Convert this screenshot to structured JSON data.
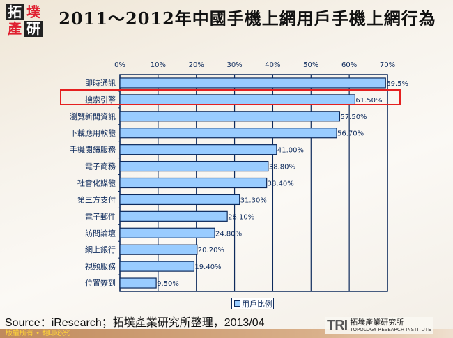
{
  "logo": {
    "chars": [
      "拓",
      "墣",
      "產",
      "研"
    ]
  },
  "title": "2011～2012年中國手機上網用戶手機上網行為",
  "chart_data": {
    "type": "bar",
    "orientation": "horizontal",
    "categories": [
      "即時通訊",
      "搜索引擎",
      "瀏覽新聞資訊",
      "下載應用軟體",
      "手機閱讀服務",
      "電子商務",
      "社會化媒體",
      "第三方支付",
      "電子郵件",
      "訪問論壇",
      "網上銀行",
      "視頻服務",
      "位置簽到"
    ],
    "series": [
      {
        "name": "用戶比例",
        "values": [
          69.5,
          61.5,
          57.5,
          56.7,
          41.0,
          38.8,
          38.4,
          31.3,
          28.1,
          24.8,
          20.2,
          19.4,
          9.5
        ]
      }
    ],
    "data_labels": [
      "69.5%",
      "61.50%",
      "57.50%",
      "56.70%",
      "41.00%",
      "38.80%",
      "38.40%",
      "31.30%",
      "28.10%",
      "24.80%",
      "20.20%",
      "19.40%",
      "9.50%"
    ],
    "xlim": [
      0,
      70
    ],
    "x_ticks": [
      "0%",
      "10%",
      "20%",
      "30%",
      "40%",
      "50%",
      "60%",
      "70%"
    ],
    "grid": true,
    "legend_position": "bottom",
    "highlighted_category": "搜索引擎",
    "colors": {
      "bar": "#99ccff",
      "axis": "#0d2a5c",
      "highlight": "#e52020"
    }
  },
  "source": "Source：iResearch；拓墣產業研究所整理，2013/04",
  "footer": "版權所有 • 翻印必究",
  "brand": {
    "mark": "TRI",
    "name": "拓墣產業研究所",
    "en": "TOPOLOGY RESEARCH INSTITUTE"
  }
}
